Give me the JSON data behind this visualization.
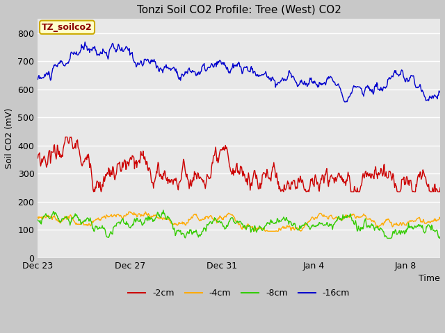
{
  "title": "Tonzi Soil CO2 Profile: Tree (West) CO2",
  "ylabel": "Soil CO2 (mV)",
  "xlabel": "Time",
  "xlim_days": [
    0,
    17.5
  ],
  "ylim": [
    0,
    850
  ],
  "yticks": [
    0,
    100,
    200,
    300,
    400,
    500,
    600,
    700,
    800
  ],
  "xtick_labels": [
    "Dec 23",
    "Dec 27",
    "Dec 31",
    "Jan 4",
    "Jan 8"
  ],
  "xtick_positions": [
    0,
    4,
    8,
    12,
    16
  ],
  "fig_bg_color": "#c8c8c8",
  "plot_bg_color": "#e8e8e8",
  "legend_label": "TZ_soilco2",
  "legend_bg": "#ffffcc",
  "legend_border": "#ccaa00",
  "series_colors": {
    "-2cm": "#cc0000",
    "-4cm": "#ffaa00",
    "-8cm": "#33cc00",
    "-16cm": "#0000cc"
  },
  "line_width": 1.0,
  "n_points": 700
}
